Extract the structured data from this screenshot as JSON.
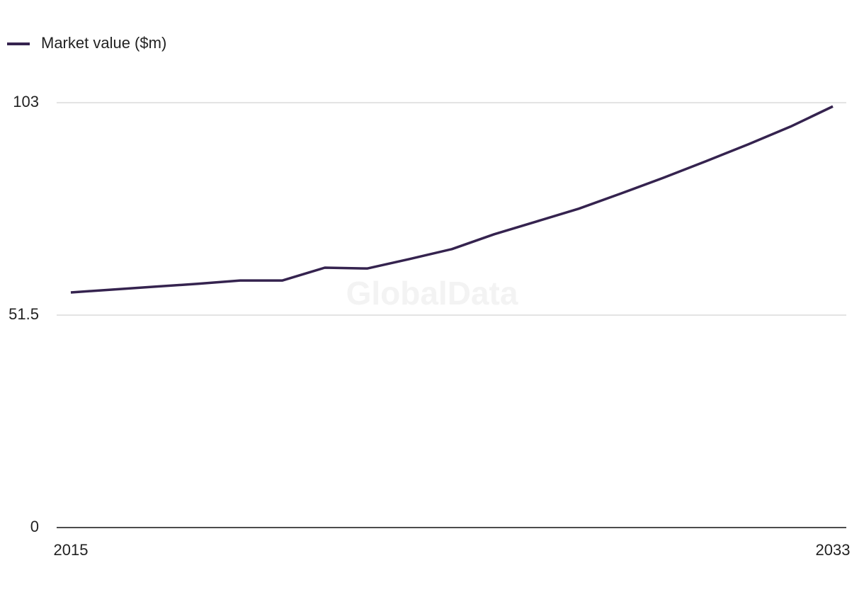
{
  "chart_data": {
    "type": "line",
    "watermark": "GlobalData",
    "x": [
      2015,
      2016,
      2017,
      2018,
      2019,
      2020,
      2021,
      2022,
      2023,
      2024,
      2025,
      2026,
      2027,
      2028,
      2029,
      2030,
      2031,
      2032,
      2033
    ],
    "series": [
      {
        "name": "Market value ($m)",
        "color": "#35234f",
        "values": [
          57.0,
          57.7,
          58.4,
          59.1,
          59.9,
          59.9,
          63.0,
          62.8,
          65.1,
          67.5,
          71.1,
          74.2,
          77.3,
          81.0,
          84.8,
          88.8,
          92.9,
          97.2,
          102.1
        ]
      }
    ],
    "xlim": [
      2015,
      2033
    ],
    "xticks": [
      2015,
      2033
    ],
    "ylim": [
      0,
      103
    ],
    "yticks": [
      0,
      51.5,
      103
    ],
    "grid": true,
    "legend": "top-left"
  }
}
